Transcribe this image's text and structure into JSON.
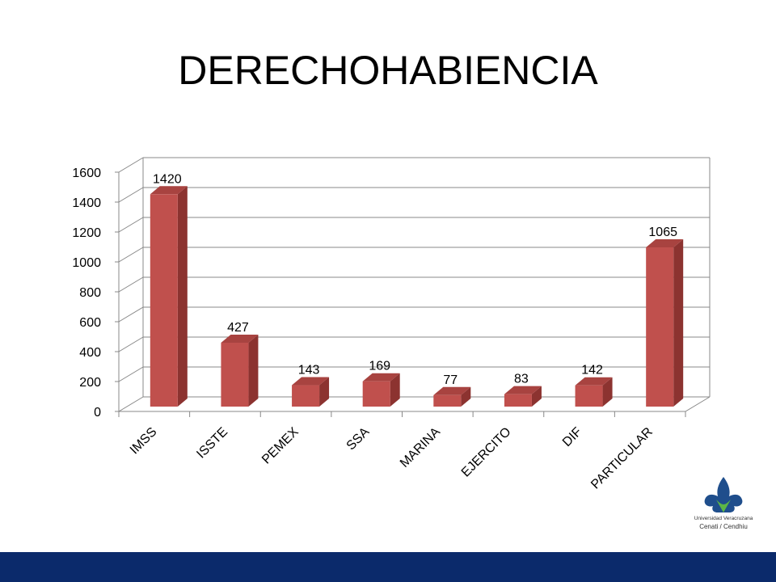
{
  "title": "DERECHOHABIENCIA",
  "colors": {
    "bar_front": "#C0504D",
    "bar_side": "#8C3330",
    "bar_top": "#A84340",
    "grid": "#888888",
    "footer": "#0B2A6B",
    "logo_blue": "#1F4E8C",
    "logo_green": "#5DB646"
  },
  "logo": {
    "line1": "Universidad Veracruzana",
    "line2": "Cenati / Cendhiu",
    "icon": "uv-flor-de-lis-icon"
  },
  "chart_data": {
    "type": "bar",
    "title": "",
    "xlabel": "",
    "ylabel": "",
    "categories": [
      "IMSS",
      "ISSTE",
      "PEMEX",
      "SSA",
      "MARINA",
      "EJERCITO",
      "DIF",
      "PARTICULAR"
    ],
    "values": [
      1420,
      427,
      143,
      169,
      77,
      83,
      142,
      1065
    ],
    "data_labels": [
      "1420",
      "427",
      "143",
      "169",
      "77",
      "83",
      "142",
      "1065"
    ],
    "ylim": [
      0,
      1600
    ],
    "yticks": [
      0,
      200,
      400,
      600,
      800,
      1000,
      1200,
      1400,
      1600
    ],
    "ytick_labels": [
      "0",
      "200",
      "400",
      "600",
      "800",
      "1000",
      "1200",
      "1400",
      "1600"
    ],
    "grid": true,
    "style": "3d-column"
  }
}
